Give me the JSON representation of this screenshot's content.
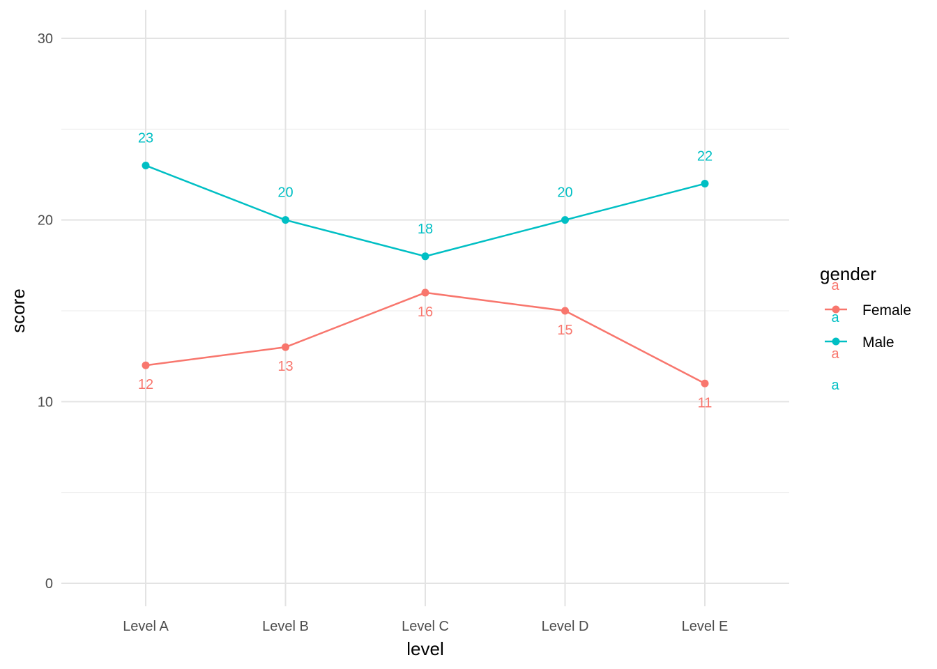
{
  "chart_data": {
    "type": "line",
    "categories": [
      "Level A",
      "Level B",
      "Level C",
      "Level D",
      "Level E"
    ],
    "series": [
      {
        "name": "Female",
        "values": [
          12,
          13,
          16,
          15,
          11
        ],
        "color": "#F8766D"
      },
      {
        "name": "Male",
        "values": [
          23,
          20,
          18,
          20,
          22
        ],
        "color": "#00BFC4"
      }
    ],
    "xlabel": "level",
    "ylabel": "score",
    "ylim": [
      0,
      30
    ],
    "yticks": [
      0,
      10,
      20,
      30
    ],
    "grid": true,
    "legend": {
      "title": "gender",
      "placement": "right",
      "glyph_text": "a"
    },
    "point_labels": true
  }
}
